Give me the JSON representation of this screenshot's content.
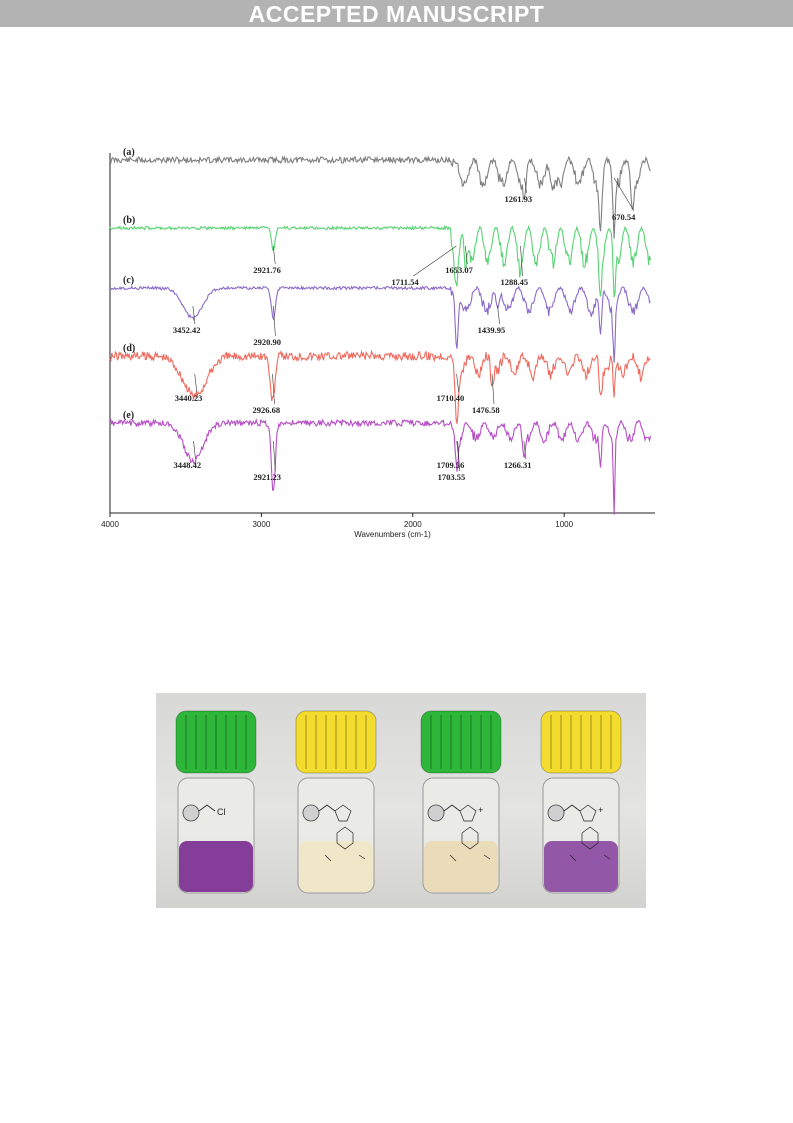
{
  "header": {
    "banner_text": "ACCEPTED MANUSCRIPT"
  },
  "chart_data": {
    "type": "line",
    "title": "",
    "xlabel": "Wavenumbers (cm-1)",
    "ylabel": "",
    "xlim": [
      4000,
      400
    ],
    "x_ticks": [
      4000,
      3000,
      2000,
      1000
    ],
    "x_tick_labels": [
      "4000",
      "3000",
      "2000",
      "1000"
    ],
    "y_ticks_shown": false,
    "grid": false,
    "series": [
      {
        "name": "(a)",
        "color": "#7f7f7f",
        "baseline_x": [
          4000,
          3600,
          3200,
          2800,
          2400,
          2000,
          1750,
          1650,
          1550,
          1450,
          1350,
          1261.93,
          1150,
          1050,
          950,
          850,
          760,
          700,
          670.54,
          600,
          520,
          440
        ],
        "peak_labels": [
          {
            "text": "1261.93",
            "x": 1261.93
          },
          {
            "text": "670.54",
            "x": 670.54
          }
        ]
      },
      {
        "name": "(b)",
        "color": "#59d373",
        "peak_labels": [
          {
            "text": "2921.76",
            "x": 2921.76
          },
          {
            "text": "1711.54",
            "x": 1711.54
          },
          {
            "text": "1653.07",
            "x": 1653.07
          },
          {
            "text": "1288.45",
            "x": 1288.45
          }
        ]
      },
      {
        "name": "(c)",
        "color": "#8c6bc8",
        "peak_labels": [
          {
            "text": "3452.42",
            "x": 3452.42
          },
          {
            "text": "2920.90",
            "x": 2920.9
          },
          {
            "text": "1439.95",
            "x": 1439.95
          }
        ]
      },
      {
        "name": "(d)",
        "color": "#ef6a5e",
        "peak_labels": [
          {
            "text": "3440.23",
            "x": 3440.23
          },
          {
            "text": "2926.68",
            "x": 2926.68
          },
          {
            "text": "1710.40",
            "x": 1710.4
          },
          {
            "text": "1476.58",
            "x": 1476.58
          }
        ]
      },
      {
        "name": "(e)",
        "color": "#b54fc4",
        "peak_labels": [
          {
            "text": "3448.42",
            "x": 3448.42
          },
          {
            "text": "2921.23",
            "x": 2921.23
          },
          {
            "text": "1709.56",
            "x": 1709.56
          },
          {
            "text": "1703.55",
            "x": 1703.55
          },
          {
            "text": "1266.31",
            "x": 1266.31
          }
        ]
      }
    ]
  },
  "photo": {
    "vials": [
      {
        "cap_color": "#2eb63a",
        "liquid_color": "#7b2f94",
        "label": "Cl",
        "plus": ""
      },
      {
        "cap_color": "#f4dc2e",
        "liquid_color": "#efe6c4",
        "label": "",
        "plus": ""
      },
      {
        "cap_color": "#2eb63a",
        "liquid_color": "#e9dab4",
        "label": "",
        "plus": "+"
      },
      {
        "cap_color": "#f4dc2e",
        "liquid_color": "#8a4ba2",
        "label": "",
        "plus": "+"
      }
    ]
  }
}
